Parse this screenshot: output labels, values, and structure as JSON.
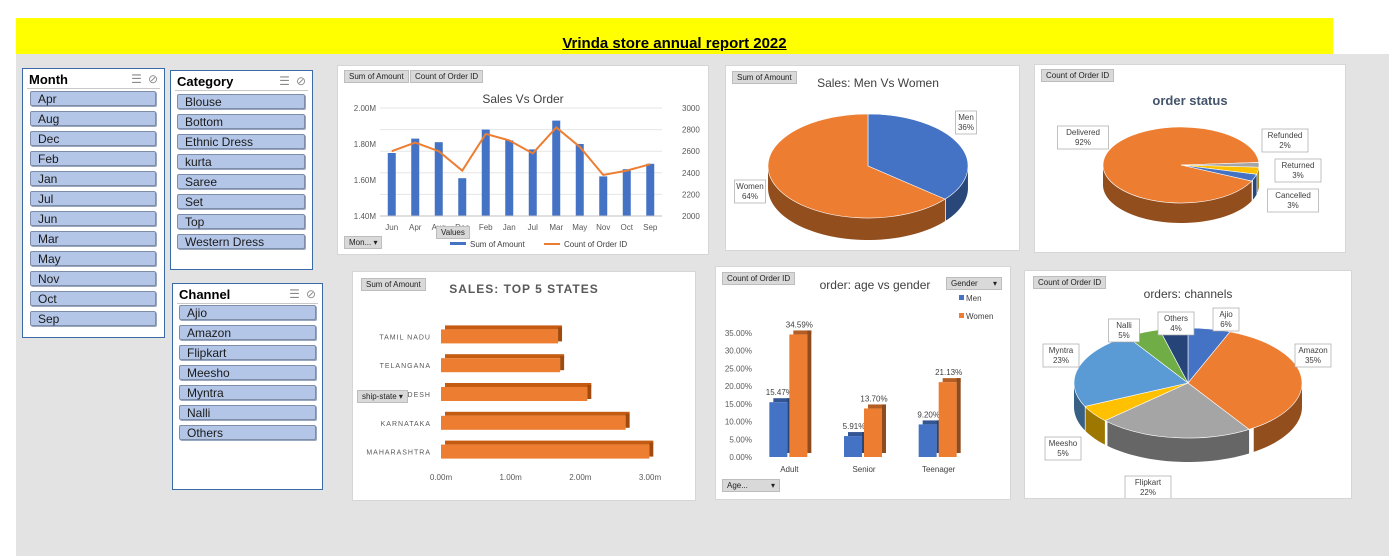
{
  "report": {
    "title": "Vrinda store annual report 2022"
  },
  "slicers": {
    "month": {
      "title": "Month",
      "items": [
        "Apr",
        "Aug",
        "Dec",
        "Feb",
        "Jan",
        "Jul",
        "Jun",
        "Mar",
        "May",
        "Nov",
        "Oct",
        "Sep"
      ]
    },
    "category": {
      "title": "Category",
      "items": [
        "Blouse",
        "Bottom",
        "Ethnic Dress",
        "kurta",
        "Saree",
        "Set",
        "Top",
        "Western Dress"
      ]
    },
    "channel": {
      "title": "Channel",
      "items": [
        "Ajio",
        "Amazon",
        "Flipkart",
        "Meesho",
        "Myntra",
        "Nalli",
        "Others"
      ]
    }
  },
  "pivot_buttons": {
    "sum_amount": "Sum of Amount",
    "count_order": "Count of Order ID",
    "month_filter": "Mon...",
    "values": "Values",
    "ship_state": "ship-state",
    "gender": "Gender",
    "age": "Age..."
  },
  "colors": {
    "accent_orange": "#ed7d31",
    "accent_blue": "#4472c4",
    "title_yellow": "#ffff00",
    "slicer_item": "#b4c6e7"
  },
  "chart_data": [
    {
      "type": "bar",
      "title": "Sales Vs Order",
      "categories": [
        "Jun",
        "Apr",
        "Aug",
        "Dec",
        "Feb",
        "Jan",
        "Jul",
        "Mar",
        "May",
        "Nov",
        "Oct",
        "Sep"
      ],
      "series": [
        {
          "name": "Sum of Amount",
          "kind": "bar",
          "axis": "left",
          "values": [
            1.75,
            1.83,
            1.81,
            1.61,
            1.88,
            1.82,
            1.77,
            1.93,
            1.8,
            1.62,
            1.66,
            1.69
          ]
        },
        {
          "name": "Count of Order ID",
          "kind": "line",
          "axis": "right",
          "values": [
            2600,
            2680,
            2600,
            2420,
            2760,
            2700,
            2580,
            2820,
            2640,
            2380,
            2420,
            2480
          ]
        }
      ],
      "left_ticks": [
        "1.40M",
        "1.60M",
        "1.80M",
        "2.00M"
      ],
      "ylim": [
        1.4,
        2.0
      ],
      "right_ticks": [
        "2000",
        "2200",
        "2400",
        "2600",
        "2800",
        "3000"
      ],
      "y2lim": [
        2000,
        3000
      ]
    },
    {
      "type": "pie",
      "title": "Sales: Men Vs Women",
      "labels": [
        "Men",
        "Women"
      ],
      "values": [
        36,
        64
      ],
      "value_labels": [
        "36%",
        "64%"
      ],
      "colors": [
        "#4472c4",
        "#ed7d31"
      ]
    },
    {
      "type": "pie",
      "title": "order status",
      "labels": [
        "Delivered",
        "Refunded",
        "Returned",
        "Cancelled"
      ],
      "values": [
        92,
        2,
        3,
        3
      ],
      "value_labels": [
        "92%",
        "2%",
        "3%",
        "3%"
      ],
      "colors": [
        "#ed7d31",
        "#a5a5a5",
        "#ffc000",
        "#4472c4"
      ]
    },
    {
      "type": "bar",
      "orientation": "horizontal",
      "title": "SALES: TOP 5 STATES",
      "categories": [
        "MAHARASHTRA",
        "KARNATAKA",
        "UTTAR PRADESH",
        "TELANGANA",
        "TAMIL NADU"
      ],
      "values": [
        2.99,
        2.65,
        2.1,
        1.71,
        1.68
      ],
      "x_ticks": [
        "0.00m",
        "1.00m",
        "2.00m",
        "3.00m"
      ],
      "xlim": [
        0,
        3.0
      ]
    },
    {
      "type": "bar",
      "title": "order: age vs gender",
      "categories": [
        "Adult",
        "Senior",
        "Teenager"
      ],
      "series": [
        {
          "name": "Men",
          "values": [
            15.47,
            5.91,
            9.2
          ],
          "labels": [
            "15.47%",
            "5.91%",
            "9.20%"
          ]
        },
        {
          "name": "Women",
          "values": [
            34.59,
            13.7,
            21.13
          ],
          "labels": [
            "34.59%",
            "13.70%",
            "21.13%"
          ]
        }
      ],
      "y_ticks": [
        "0.00%",
        "5.00%",
        "10.00%",
        "15.00%",
        "20.00%",
        "25.00%",
        "30.00%",
        "35.00%"
      ],
      "ylim": [
        0,
        35
      ]
    },
    {
      "type": "pie",
      "title": "orders: channels",
      "labels": [
        "Ajio",
        "Amazon",
        "Flipkart",
        "Meesho",
        "Myntra",
        "Nalli",
        "Others"
      ],
      "values": [
        6,
        35,
        22,
        5,
        23,
        5,
        4
      ],
      "value_labels": [
        "6%",
        "35%",
        "22%",
        "5%",
        "23%",
        "5%",
        "4%"
      ],
      "colors": [
        "#4472c4",
        "#ed7d31",
        "#a5a5a5",
        "#ffc000",
        "#5b9bd5",
        "#70ad47",
        "#264478"
      ]
    }
  ]
}
